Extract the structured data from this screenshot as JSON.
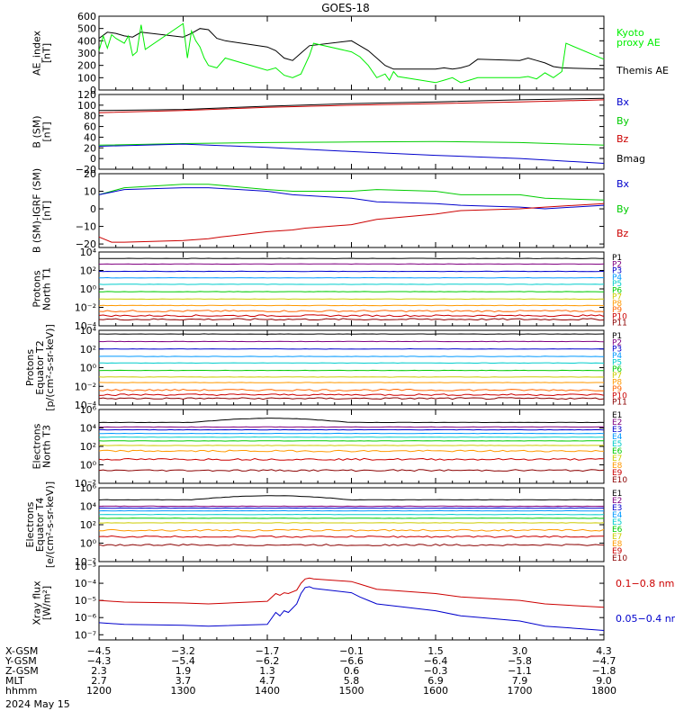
{
  "title": "GOES-18",
  "date_label": "2024 May 15",
  "chart_data": [
    {
      "type": "line",
      "ylabel": [
        "AE_index",
        "[nT]"
      ],
      "ylim": [
        0,
        600
      ],
      "yticks": [
        "0",
        "100",
        "200",
        "300",
        "400",
        "500",
        "600"
      ],
      "yvals": [
        0,
        100,
        200,
        300,
        400,
        500,
        600
      ],
      "legend": [
        {
          "name": "Kyoto",
          "color": "#00ee00"
        },
        {
          "name": "proxy AE",
          "color": "#00ee00"
        },
        {
          "name": "Themis AE",
          "color": "#000000"
        }
      ],
      "series": [
        {
          "name": "Themis AE",
          "color": "#000000",
          "x": [
            1200,
            1210,
            1220,
            1230,
            1240,
            1250,
            1300,
            1310,
            1320,
            1330,
            1340,
            1350,
            1400,
            1410,
            1420,
            1430,
            1440,
            1450,
            1500,
            1510,
            1520,
            1530,
            1540,
            1550,
            1600,
            1610,
            1620,
            1630,
            1640,
            1650,
            1700,
            1710,
            1720,
            1730,
            1740,
            1750,
            1800
          ],
          "y": [
            420,
            470,
            460,
            440,
            430,
            470,
            430,
            460,
            500,
            490,
            420,
            400,
            350,
            320,
            260,
            240,
            300,
            360,
            400,
            360,
            320,
            260,
            200,
            170,
            170,
            180,
            170,
            180,
            200,
            250,
            240,
            260,
            240,
            220,
            190,
            180,
            170
          ]
        },
        {
          "name": "Kyoto proxy AE",
          "color": "#00ee00",
          "x": [
            1200,
            1205,
            1210,
            1215,
            1220,
            1230,
            1235,
            1240,
            1245,
            1250,
            1255,
            1300,
            1305,
            1310,
            1315,
            1320,
            1325,
            1330,
            1340,
            1350,
            1400,
            1410,
            1420,
            1430,
            1440,
            1450,
            1455,
            1500,
            1510,
            1520,
            1530,
            1540,
            1545,
            1550,
            1555,
            1600,
            1610,
            1620,
            1630,
            1640,
            1650,
            1700,
            1710,
            1720,
            1730,
            1740,
            1750,
            1755,
            1800
          ],
          "y": [
            320,
            440,
            340,
            450,
            420,
            380,
            440,
            280,
            310,
            530,
            330,
            540,
            260,
            480,
            400,
            350,
            260,
            200,
            180,
            260,
            160,
            180,
            120,
            100,
            130,
            280,
            380,
            310,
            270,
            200,
            100,
            130,
            80,
            150,
            110,
            60,
            80,
            100,
            60,
            80,
            100,
            100,
            110,
            90,
            140,
            100,
            150,
            380,
            250
          ]
        }
      ]
    },
    {
      "type": "line",
      "ylabel": [
        "B (SM)",
        "[nT]"
      ],
      "ylim": [
        -20,
        120
      ],
      "yticks": [
        "120",
        "100",
        "80",
        "60",
        "40",
        "20",
        "0",
        "−20"
      ],
      "yvals": [
        120,
        100,
        80,
        60,
        40,
        20,
        0,
        -20
      ],
      "legend": [
        {
          "name": "Bx",
          "color": "#0000cc"
        },
        {
          "name": "By",
          "color": "#00cc00"
        },
        {
          "name": "Bz",
          "color": "#cc0000"
        },
        {
          "name": "Bmag",
          "color": "#000000"
        }
      ],
      "series": [
        {
          "name": "Bmag",
          "color": "#000000",
          "x": [
            1200,
            1300,
            1400,
            1500,
            1600,
            1700,
            1800
          ],
          "y": [
            90,
            92,
            98,
            103,
            106,
            110,
            113
          ]
        },
        {
          "name": "Bz",
          "color": "#cc0000",
          "x": [
            1200,
            1300,
            1400,
            1500,
            1600,
            1700,
            1800
          ],
          "y": [
            86,
            90,
            96,
            100,
            103,
            106,
            110
          ]
        },
        {
          "name": "By",
          "color": "#00cc00",
          "x": [
            1200,
            1300,
            1400,
            1500,
            1600,
            1700,
            1800
          ],
          "y": [
            25,
            28,
            30,
            31,
            32,
            30,
            25
          ]
        },
        {
          "name": "Bx",
          "color": "#0000cc",
          "x": [
            1200,
            1300,
            1400,
            1500,
            1600,
            1700,
            1800
          ],
          "y": [
            23,
            27,
            21,
            13,
            6,
            0,
            -9
          ]
        }
      ]
    },
    {
      "type": "line",
      "ylabel": [
        "B (SM)-IGRF (SM)",
        "[nT]"
      ],
      "ylim": [
        -22,
        20
      ],
      "yticks": [
        "20",
        "10",
        "0",
        "−10",
        "−20"
      ],
      "yvals": [
        20,
        10,
        0,
        -10,
        -20
      ],
      "legend": [
        {
          "name": "Bx",
          "color": "#0000cc"
        },
        {
          "name": "By",
          "color": "#00cc00"
        },
        {
          "name": "Bz",
          "color": "#cc0000"
        }
      ],
      "series": [
        {
          "name": "By",
          "color": "#00cc00",
          "x": [
            1200,
            1230,
            1300,
            1330,
            1400,
            1430,
            1500,
            1530,
            1600,
            1630,
            1700,
            1730,
            1800
          ],
          "y": [
            8,
            12,
            14,
            14,
            11,
            10,
            10,
            11,
            10,
            8,
            8,
            6,
            5
          ]
        },
        {
          "name": "Bx",
          "color": "#0000cc",
          "x": [
            1200,
            1230,
            1300,
            1330,
            1400,
            1430,
            1500,
            1530,
            1600,
            1630,
            1700,
            1730,
            1800
          ],
          "y": [
            8,
            11,
            12,
            12,
            10,
            8,
            6,
            4,
            3,
            2,
            1,
            0,
            2
          ]
        },
        {
          "name": "Bz",
          "color": "#cc0000",
          "x": [
            1200,
            1215,
            1230,
            1300,
            1330,
            1345,
            1400,
            1430,
            1445,
            1500,
            1530,
            1600,
            1630,
            1700,
            1730,
            1800
          ],
          "y": [
            -16,
            -19,
            -19,
            -18,
            -17,
            -16,
            -13,
            -12,
            -11,
            -9,
            -6,
            -3,
            -1,
            0,
            1,
            3
          ]
        }
      ]
    },
    {
      "type": "line",
      "ylabel": [
        "Protons",
        "North T1"
      ],
      "log": true,
      "ylim": [
        -4,
        4
      ],
      "yticks": [
        "10⁴",
        "10²",
        "10⁰",
        "10⁻²",
        "10⁻⁴"
      ],
      "yvals": [
        4,
        2,
        0,
        -2,
        -4
      ],
      "channels": [
        {
          "name": "P1",
          "color": "#000000",
          "level": 3.3
        },
        {
          "name": "P2",
          "color": "#800080",
          "level": 2.7
        },
        {
          "name": "P3",
          "color": "#0000cc",
          "level": 1.9
        },
        {
          "name": "P4",
          "color": "#0099ff",
          "level": 1.2
        },
        {
          "name": "P5",
          "color": "#00cccc",
          "level": 0.5
        },
        {
          "name": "P6",
          "color": "#00cc00",
          "level": -0.3
        },
        {
          "name": "P7",
          "color": "#cccc00",
          "level": -1.1
        },
        {
          "name": "P8",
          "color": "#ff9900",
          "level": -1.8
        },
        {
          "name": "P9",
          "color": "#ff6600",
          "level": -2.4
        },
        {
          "name": "P10",
          "color": "#cc0000",
          "level": -2.9
        },
        {
          "name": "P11",
          "color": "#8b0000",
          "level": -3.3
        }
      ]
    },
    {
      "type": "line",
      "ylabel": [
        "Protons",
        "Equator T2",
        "[p/(cm²-s-sr-keV)]"
      ],
      "log": true,
      "ylim": [
        -4,
        4
      ],
      "yticks": [
        "10⁴",
        "10²",
        "10⁰",
        "10⁻²",
        "10⁻⁴"
      ],
      "yvals": [
        4,
        2,
        0,
        -2,
        -4
      ],
      "channels": [
        {
          "name": "P1",
          "color": "#000000",
          "level": 3.6
        },
        {
          "name": "P2",
          "color": "#800080",
          "level": 2.8
        },
        {
          "name": "P3",
          "color": "#0000cc",
          "level": 2.0
        },
        {
          "name": "P4",
          "color": "#0099ff",
          "level": 1.2
        },
        {
          "name": "P5",
          "color": "#00cccc",
          "level": 0.5
        },
        {
          "name": "P6",
          "color": "#00cc00",
          "level": -0.3
        },
        {
          "name": "P7",
          "color": "#cccc00",
          "level": -1.0
        },
        {
          "name": "P8",
          "color": "#ff9900",
          "level": -1.6
        },
        {
          "name": "P9",
          "color": "#ff6600",
          "level": -2.4
        },
        {
          "name": "P10",
          "color": "#cc0000",
          "level": -2.9
        },
        {
          "name": "P11",
          "color": "#8b0000",
          "level": -3.3
        }
      ]
    },
    {
      "type": "line",
      "ylabel": [
        "Electrons",
        "North T3"
      ],
      "log": true,
      "ylim": [
        -2,
        6
      ],
      "yticks": [
        "10⁶",
        "10⁴",
        "10²",
        "10⁰",
        "10⁻²"
      ],
      "yvals": [
        6,
        4,
        2,
        0,
        -2
      ],
      "channels": [
        {
          "name": "E1",
          "color": "#000000",
          "level": 4.6
        },
        {
          "name": "E2",
          "color": "#800080",
          "level": 4.1
        },
        {
          "name": "E3",
          "color": "#0000cc",
          "level": 3.8
        },
        {
          "name": "E4",
          "color": "#0099ff",
          "level": 3.4
        },
        {
          "name": "E5",
          "color": "#00cccc",
          "level": 3.0
        },
        {
          "name": "E6",
          "color": "#00cc00",
          "level": 2.6
        },
        {
          "name": "E7",
          "color": "#cccc00",
          "level": 2.1
        },
        {
          "name": "E8",
          "color": "#ff9900",
          "level": 1.5
        },
        {
          "name": "E9",
          "color": "#cc0000",
          "level": 0.6
        },
        {
          "name": "E10",
          "color": "#8b0000",
          "level": -0.6
        }
      ]
    },
    {
      "type": "line",
      "ylabel": [
        "Electrons",
        "Equator T4",
        "[e/(cm²-s-sr-keV)]"
      ],
      "log": true,
      "ylim": [
        -2,
        6
      ],
      "yticks": [
        "10⁶",
        "10⁴",
        "10²",
        "10⁰",
        "10⁻²"
      ],
      "yvals": [
        6,
        4,
        2,
        0,
        -2
      ],
      "channels": [
        {
          "name": "E1",
          "color": "#000000",
          "level": 4.7
        },
        {
          "name": "E2",
          "color": "#800080",
          "level": 4.0
        },
        {
          "name": "E3",
          "color": "#0000cc",
          "level": 3.8
        },
        {
          "name": "E4",
          "color": "#0099ff",
          "level": 3.5
        },
        {
          "name": "E5",
          "color": "#00cccc",
          "level": 3.1
        },
        {
          "name": "E6",
          "color": "#00cc00",
          "level": 2.7
        },
        {
          "name": "E7",
          "color": "#cccc00",
          "level": 2.2
        },
        {
          "name": "E8",
          "color": "#ff9900",
          "level": 1.4
        },
        {
          "name": "E9",
          "color": "#cc0000",
          "level": 0.7
        },
        {
          "name": "E10",
          "color": "#8b0000",
          "level": -0.2
        }
      ]
    },
    {
      "type": "line",
      "ylabel": [
        "Xray flux",
        "[W/m²]"
      ],
      "log": true,
      "ylim": [
        -7.3,
        -3
      ],
      "yticks": [
        "10⁻³",
        "10⁻⁴",
        "10⁻⁵",
        "10⁻⁶",
        "10⁻⁷"
      ],
      "yvals": [
        -3,
        -4,
        -5,
        -6,
        -7
      ],
      "legend": [
        {
          "name": "0.1−0.8 nm",
          "color": "#cc0000"
        },
        {
          "name": "0.05−0.4 nm",
          "color": "#0000cc"
        }
      ],
      "series": [
        {
          "name": "0.1−0.8 nm",
          "color": "#cc0000",
          "x": [
            1200,
            1230,
            1300,
            1330,
            1400,
            1410,
            1415,
            1420,
            1425,
            1435,
            1440,
            1445,
            1450,
            1455,
            1500,
            1510,
            1520,
            1530,
            1600,
            1630,
            1700,
            1730,
            1800
          ],
          "y": [
            -5.0,
            -5.1,
            -5.15,
            -5.2,
            -5.05,
            -4.6,
            -4.7,
            -4.55,
            -4.6,
            -4.4,
            -4.0,
            -3.75,
            -3.7,
            -3.75,
            -3.9,
            -4.05,
            -4.2,
            -4.35,
            -4.6,
            -4.8,
            -5.0,
            -5.2,
            -5.4
          ]
        },
        {
          "name": "0.05−0.4 nm",
          "color": "#0000cc",
          "x": [
            1200,
            1230,
            1300,
            1330,
            1400,
            1410,
            1415,
            1420,
            1425,
            1435,
            1440,
            1445,
            1450,
            1455,
            1500,
            1510,
            1520,
            1530,
            1600,
            1630,
            1700,
            1730,
            1800
          ],
          "y": [
            -6.3,
            -6.4,
            -6.45,
            -6.5,
            -6.4,
            -5.7,
            -5.9,
            -5.6,
            -5.7,
            -5.2,
            -4.6,
            -4.25,
            -4.2,
            -4.3,
            -4.55,
            -4.8,
            -5.0,
            -5.2,
            -5.6,
            -5.9,
            -6.2,
            -6.5,
            -6.75
          ]
        }
      ]
    }
  ],
  "xaxis": {
    "range": [
      1200,
      1800
    ],
    "row_labels": [
      "X-GSM",
      "Y-GSM",
      "Z-GSM",
      "MLT",
      "hhmm"
    ],
    "columns": [
      [
        "−4.5",
        "−4.3",
        "2.3",
        "2.7",
        "1200"
      ],
      [
        "−3.2",
        "−5.4",
        "1.9",
        "3.7",
        "1300"
      ],
      [
        "−1.7",
        "−6.2",
        "1.3",
        "4.7",
        "1400"
      ],
      [
        "−0.1",
        "−6.6",
        "0.6",
        "5.8",
        "1500"
      ],
      [
        "1.5",
        "−6.4",
        "−0.3",
        "6.9",
        "1600"
      ],
      [
        "3.0",
        "−5.8",
        "−1.1",
        "7.9",
        "1700"
      ],
      [
        "4.3",
        "−4.7",
        "−1.8",
        "9.0",
        "1800"
      ]
    ]
  }
}
